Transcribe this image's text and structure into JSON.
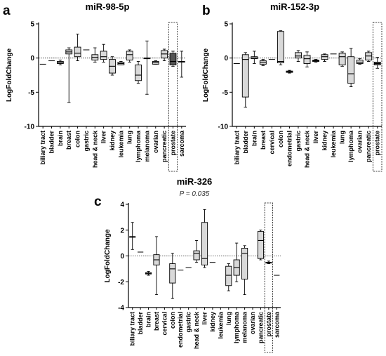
{
  "chart_data": [
    {
      "panel": "a",
      "type": "box",
      "title": "miR-98-5p",
      "ylabel": "LogFoldChange",
      "ylim": [
        -10,
        5
      ],
      "yticks": [
        5,
        0,
        -5,
        -10
      ],
      "reference_line": 0,
      "categories": [
        "biliary tract",
        "bladder",
        "brain",
        "breast",
        "colon",
        "gastric",
        "head & neck",
        "liver",
        "kidney",
        "leukemia",
        "lung",
        "lymphoma",
        "melanoma",
        "ovarian",
        "pancreatic",
        "prostate",
        "sarcoma"
      ],
      "boxes": [
        {
          "min": -0.9,
          "q1": -0.9,
          "median": -0.9,
          "q3": -0.9,
          "max": -0.9
        },
        {
          "min": -0.4,
          "q1": -0.4,
          "median": -0.4,
          "q3": -0.4,
          "max": -0.4
        },
        {
          "min": -1.0,
          "q1": -0.8,
          "median": -0.7,
          "q3": -0.5,
          "max": -0.3
        },
        {
          "min": -6.5,
          "q1": 0.6,
          "median": 0.9,
          "q3": 1.2,
          "max": 1.5
        },
        {
          "min": -0.4,
          "q1": 0.2,
          "median": 0.7,
          "q3": 1.6,
          "max": 3.5
        },
        {
          "min": 1.2,
          "q1": 1.2,
          "median": 1.2,
          "q3": 1.2,
          "max": 1.2
        },
        {
          "min": -0.6,
          "q1": -0.3,
          "median": 0.1,
          "q3": 0.5,
          "max": 1.5
        },
        {
          "min": -0.6,
          "q1": -0.2,
          "median": 0.2,
          "q3": 1.0,
          "max": 2.0
        },
        {
          "min": -2.5,
          "q1": -2.2,
          "median": -1.2,
          "q3": -0.2,
          "max": 0.2
        },
        {
          "min": -1.0,
          "q1": -1.0,
          "median": -0.8,
          "q3": -0.6,
          "max": -0.5
        },
        {
          "min": -0.6,
          "q1": -0.3,
          "median": 0.5,
          "q3": 1.0,
          "max": 1.2
        },
        {
          "min": -3.7,
          "q1": -3.3,
          "median": -2.5,
          "q3": -1.0,
          "max": -0.5
        },
        {
          "min": -5.3,
          "q1": 0.0,
          "median": 0.0,
          "q3": 0.0,
          "max": 2.5
        },
        {
          "min": -0.9,
          "q1": -0.9,
          "median": -0.7,
          "q3": -0.5,
          "max": -0.4
        },
        {
          "min": -0.4,
          "q1": 0.0,
          "median": 0.6,
          "q3": 1.1,
          "max": 1.3
        },
        {
          "min": -1.2,
          "q1": -1.0,
          "median": -0.5,
          "q3": 0.7,
          "max": 1.0
        },
        {
          "min": -2.8,
          "q1": -0.5,
          "median": -0.5,
          "q3": -0.5,
          "max": 1.0
        }
      ],
      "highlight": "prostate"
    },
    {
      "panel": "b",
      "type": "box",
      "title": "miR-152-3p",
      "ylabel": "LogFoldChange",
      "ylim": [
        -10,
        5
      ],
      "yticks": [
        5,
        0,
        -5,
        -10
      ],
      "reference_line": 0,
      "categories": [
        "biliary tract",
        "bladder",
        "brain",
        "breast",
        "cervical",
        "colon",
        "endometrial",
        "gastric",
        "head & neck",
        "liver",
        "kidney",
        "leukemia",
        "lung",
        "lymphoma",
        "ovarian",
        "pancreatic",
        "prostate"
      ],
      "boxes": [
        {
          "min": -0.8,
          "q1": -0.8,
          "median": -0.8,
          "q3": -0.8,
          "max": -0.8
        },
        {
          "min": -7.2,
          "q1": -5.7,
          "median": -0.2,
          "q3": 0.5,
          "max": 0.8
        },
        {
          "min": -0.8,
          "q1": -0.1,
          "median": 0.0,
          "q3": 0.2,
          "max": 1.0
        },
        {
          "min": -1.1,
          "q1": -0.9,
          "median": -0.6,
          "q3": -0.4,
          "max": -0.2
        },
        {
          "min": -0.2,
          "q1": -0.2,
          "median": -0.2,
          "q3": -0.2,
          "max": -0.2
        },
        {
          "min": -1.0,
          "q1": -0.7,
          "median": -0.5,
          "q3": 3.9,
          "max": 4.0
        },
        {
          "min": -2.2,
          "q1": -2.1,
          "median": -2.0,
          "q3": -1.9,
          "max": -1.8
        },
        {
          "min": -0.5,
          "q1": 0.0,
          "median": 0.3,
          "q3": 0.8,
          "max": 1.1
        },
        {
          "min": -1.3,
          "q1": -0.8,
          "median": -0.1,
          "q3": 0.4,
          "max": 0.9
        },
        {
          "min": -0.6,
          "q1": -0.5,
          "median": -0.4,
          "q3": -0.3,
          "max": -0.2
        },
        {
          "min": -0.5,
          "q1": -0.2,
          "median": 0.2,
          "q3": 0.5,
          "max": 0.6
        },
        {
          "min": 0.6,
          "q1": 0.6,
          "median": 0.6,
          "q3": 0.6,
          "max": 0.6
        },
        {
          "min": -1.2,
          "q1": -1.0,
          "median": 0.2,
          "q3": 0.7,
          "max": 0.9
        },
        {
          "min": -4.2,
          "q1": -3.7,
          "median": -2.3,
          "q3": 0.2,
          "max": 1.4
        },
        {
          "min": -0.9,
          "q1": -0.8,
          "median": -0.6,
          "q3": -0.3,
          "max": -0.1
        },
        {
          "min": -0.5,
          "q1": -0.3,
          "median": 0.3,
          "q3": 0.8,
          "max": 1.0
        },
        {
          "min": -1.5,
          "q1": -1.0,
          "median": -0.8,
          "q3": -0.6,
          "max": 0.1
        }
      ],
      "highlight": "prostate"
    },
    {
      "panel": "c",
      "type": "box",
      "title": "miR-326",
      "annotation": "P = 0.035",
      "ylabel": "LogFoldChange",
      "ylim": [
        -4,
        4
      ],
      "yticks": [
        4,
        2,
        0,
        -2,
        -4
      ],
      "reference_line": 0,
      "categories": [
        "biliary tract",
        "bladder",
        "brain",
        "breast",
        "cervical",
        "colon",
        "endometrial",
        "gastric",
        "head & neck",
        "liver",
        "kidney",
        "leukemia",
        "lung",
        "lymphoma",
        "melanoma",
        "ovarian",
        "pancreatic",
        "prostate",
        "sarcoma"
      ],
      "boxes": [
        {
          "min": 0.5,
          "q1": 1.5,
          "median": 1.5,
          "q3": 1.5,
          "max": 2.6
        },
        {
          "min": 0.3,
          "q1": 0.3,
          "median": 0.3,
          "q3": 0.3,
          "max": 0.3
        },
        {
          "min": -1.5,
          "q1": -1.4,
          "median": -1.35,
          "q3": -1.3,
          "max": -1.2
        },
        {
          "min": -3.0,
          "q1": -0.7,
          "median": -0.3,
          "q3": 0.1,
          "max": 1.5
        },
        {},
        {
          "min": -3.3,
          "q1": -2.1,
          "median": -1.0,
          "q3": -0.6,
          "max": 0.2
        },
        {
          "min": -1.1,
          "q1": -1.1,
          "median": -1.1,
          "q3": -1.1,
          "max": -1.1
        },
        {
          "min": -0.9,
          "q1": -0.9,
          "median": -0.9,
          "q3": -0.9,
          "max": -0.9
        },
        {
          "min": -0.5,
          "q1": -0.3,
          "median": 0.2,
          "q3": 0.4,
          "max": 1.2
        },
        {
          "min": -0.9,
          "q1": -0.7,
          "median": -0.2,
          "q3": 2.6,
          "max": 3.6
        },
        {
          "min": -0.5,
          "q1": -0.5,
          "median": -0.5,
          "q3": -0.5,
          "max": -0.5
        },
        {},
        {
          "min": -2.7,
          "q1": -2.3,
          "median": -1.5,
          "q3": -0.8,
          "max": -0.6
        },
        {
          "min": -2.0,
          "q1": -1.5,
          "median": -0.9,
          "q3": -0.3,
          "max": 1.0
        },
        {
          "min": -3.0,
          "q1": -1.8,
          "median": 0.2,
          "q3": 0.6,
          "max": 0.8
        },
        {},
        {
          "min": -0.3,
          "q1": -0.2,
          "median": 1.2,
          "q3": 1.9,
          "max": 2.0
        },
        {
          "min": -0.6,
          "q1": -0.5,
          "median": -0.5,
          "q3": -0.5,
          "max": -0.4
        },
        {
          "min": -1.5,
          "q1": -1.5,
          "median": -1.5,
          "q3": -1.5,
          "max": -1.5
        }
      ],
      "highlight": "prostate"
    }
  ]
}
